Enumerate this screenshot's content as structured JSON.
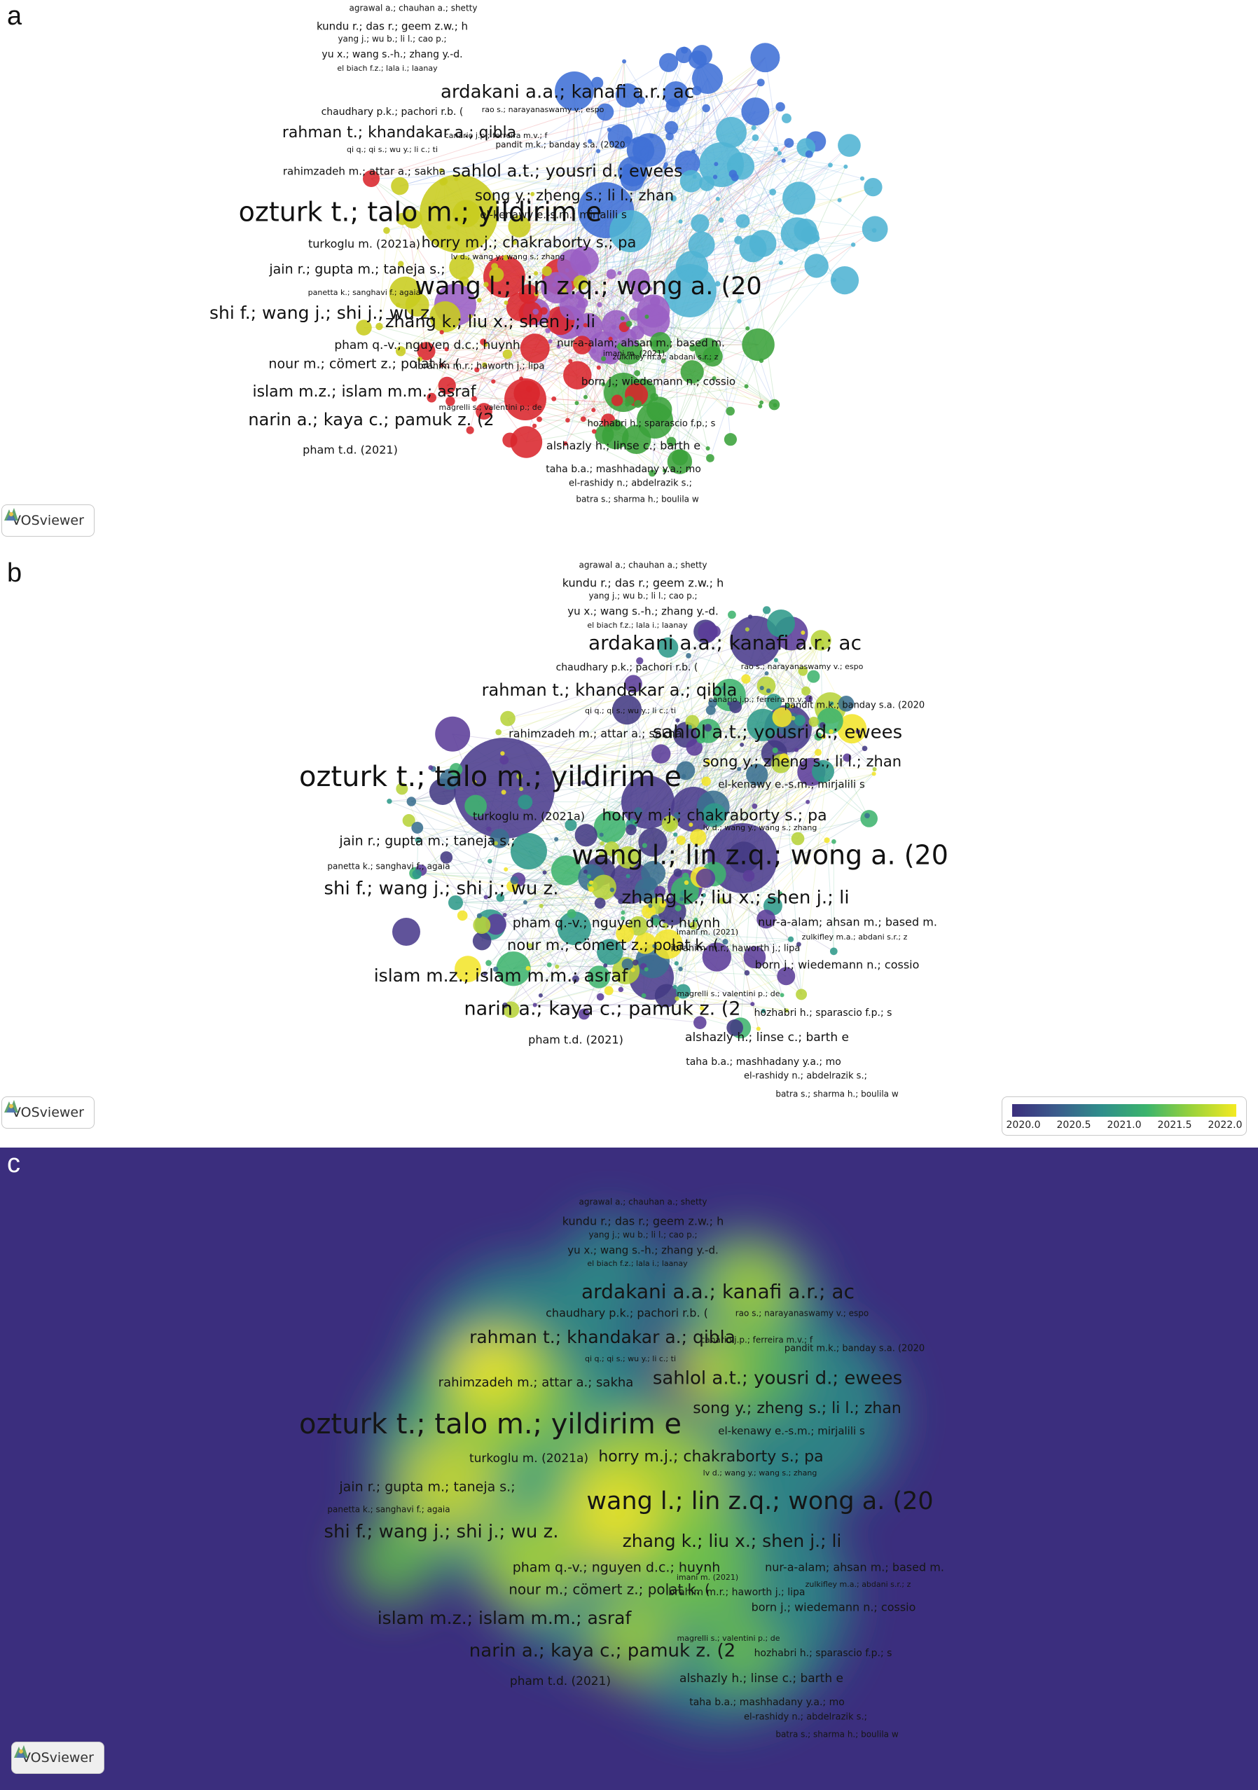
{
  "panels": [
    {
      "letter": "a"
    },
    {
      "letter": "b"
    },
    {
      "letter": "c"
    }
  ],
  "vosviewer_label": "VOSviewer",
  "legend": {
    "ticks": [
      "2020.0",
      "2020.5",
      "2021.0",
      "2021.5",
      "2022.0"
    ]
  },
  "node_labels": [
    "agrawal a.; chauhan a.; shetty",
    "kundu r.; das r.; geem z.w.; h",
    "yang j.; wu b.; li l.; cao p.;",
    "yu x.; wang s.-h.; zhang y.-d.",
    "el biach f.z.; lala i.; laanay",
    "ardakani a.a.; kanafi a.r.; ac",
    "chaudhary p.k.; pachori r.b. (",
    "rao s.; narayanaswamy v.; espo",
    "rahman t.; khandakar a.; qibla",
    "canário j.p.; ferreira m.v.; f",
    "pandit m.k.; banday s.a. (2020",
    "qi q.; qi s.; wu y.; li c.; ti",
    "rahimzadeh m.; attar a.; sakha",
    "sahlol a.t.; yousri d.; ewees",
    "song y.; zheng s.; li l.; zhan",
    "ozturk t.; talo m.; yildirim e",
    "el-kenawy e.-s.m.; mirjalili s",
    "turkoglu m. (2021a)",
    "horry m.j.; chakraborty s.; pa",
    "lv d.; wang y.; wang s.; zhang",
    "jain r.; gupta m.; taneja s.;",
    "wang l.; lin z.q.; wong a. (20",
    "panetta k.; sanghavi f.; agaia",
    "shi f.; wang j.; shi j.; wu z.",
    "zhang k.; liu x.; shen j.; li",
    "pham q.-v.; nguyen d.c.; huynh",
    "nur-a-alam; ahsan m.; based m.",
    "imani m. (2021)",
    "zulkifley m.a.; abdani s.r.; z",
    "nour m.; cömert z.; polat k. (",
    "ibrahim m.r.; haworth j.; lipa",
    "born j.; wiedemann n.; cossio",
    "islam m.z.; islam m.m.; asraf",
    "magrelli s.; valentini p.; de",
    "narin a.; kaya c.; pamuk z. (2",
    "hozhabri h.; sparascio f.p.; s",
    "pham t.d. (2021)",
    "alshazly h.; linse c.; barth e",
    "taha b.a.; mashhadany y.a.; mo",
    "el-rashidy n.; abdelrazik s.;",
    "batra s.; sharma h.; boulila w"
  ]
}
